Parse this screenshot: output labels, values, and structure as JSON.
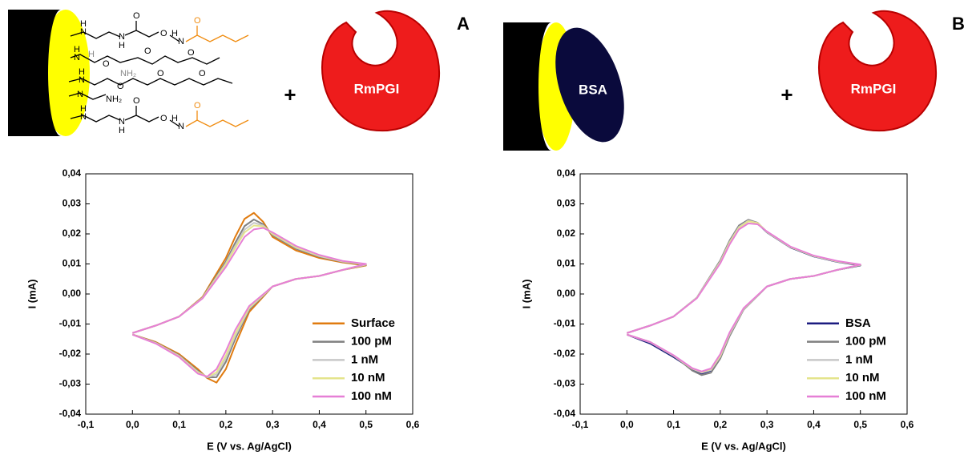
{
  "schematic": [
    {
      "panel_label": "A",
      "plus": "+",
      "protein": "RmPGI",
      "atoms": [
        "H",
        "N",
        "O",
        "N",
        "H",
        "O",
        "N",
        "H",
        "O",
        "H",
        "N",
        "H",
        "NH₂",
        "O",
        "O",
        "O",
        "H",
        "N",
        "O",
        "O",
        "O",
        "N",
        "NH₂",
        "H",
        "N",
        "O",
        "N",
        "H",
        "O",
        "N",
        "H",
        "O"
      ]
    },
    {
      "panel_label": "B",
      "blocker": "BSA",
      "plus": "+",
      "protein": "RmPGI"
    }
  ],
  "chart_data": [
    {
      "type": "line",
      "xlabel": "E (V vs. Ag/AgCl)",
      "ylabel": "I (mA)",
      "legend": "lower right",
      "xlim": [
        -0.1,
        0.6
      ],
      "ylim": [
        -0.04,
        0.04
      ],
      "xticks": [
        {
          "value": -0.1,
          "label": "-0,1"
        },
        {
          "value": 0,
          "label": "0,0"
        },
        {
          "value": 0.1,
          "label": "0,1"
        },
        {
          "value": 0.2,
          "label": "0,2"
        },
        {
          "value": 0.3,
          "label": "0,3"
        },
        {
          "value": 0.4,
          "label": "0,4"
        },
        {
          "value": 0.5,
          "label": "0,5"
        },
        {
          "value": 0.6,
          "label": "0,6"
        }
      ],
      "yticks": [
        {
          "value": -0.04,
          "label": "-0,04"
        },
        {
          "value": -0.03,
          "label": "-0,03"
        },
        {
          "value": -0.02,
          "label": "-0,02"
        },
        {
          "value": -0.01,
          "label": "-0,01"
        },
        {
          "value": 0,
          "label": "0,00"
        },
        {
          "value": 0.01,
          "label": "0,01"
        },
        {
          "value": 0.02,
          "label": "0,02"
        },
        {
          "value": 0.03,
          "label": "0,03"
        },
        {
          "value": 0.04,
          "label": "0,04"
        }
      ],
      "x": [
        0,
        0.05,
        0.1,
        0.15,
        0.2,
        0.22,
        0.24,
        0.26,
        0.28,
        0.3,
        0.35,
        0.4,
        0.45,
        0.5,
        0.45,
        0.4,
        0.35,
        0.3,
        0.25,
        0.22,
        0.2,
        0.18,
        0.16,
        0.14,
        0.1,
        0.05,
        0
      ],
      "series": [
        {
          "name": "Surface",
          "color": "#e07b10",
          "values": [
            -0.013,
            -0.0105,
            -0.0075,
            -0.001,
            0.012,
            0.019,
            0.025,
            0.027,
            0.024,
            0.019,
            0.0145,
            0.012,
            0.0105,
            0.0095,
            0.008,
            0.006,
            0.005,
            0.0025,
            -0.006,
            -0.017,
            -0.025,
            -0.0295,
            -0.028,
            -0.025,
            -0.02,
            -0.016,
            -0.0135
          ]
        },
        {
          "name": "100 pM",
          "color": "#808080",
          "values": [
            -0.013,
            -0.0105,
            -0.0075,
            -0.0012,
            0.0108,
            0.017,
            0.0226,
            0.0248,
            0.0232,
            0.0196,
            0.0151,
            0.0124,
            0.0107,
            0.0097,
            0.008,
            0.006,
            0.005,
            0.0025,
            -0.0052,
            -0.015,
            -0.0226,
            -0.0277,
            -0.0278,
            -0.0256,
            -0.0204,
            -0.0162,
            -0.0135
          ]
        },
        {
          "name": "1 nM",
          "color": "#c8c8c8",
          "values": [
            -0.013,
            -0.0105,
            -0.0075,
            -0.0013,
            0.0102,
            0.016,
            0.0214,
            0.0237,
            0.0228,
            0.0199,
            0.0154,
            0.0126,
            0.0108,
            0.0098,
            0.008,
            0.006,
            0.005,
            0.0025,
            -0.0048,
            -0.014,
            -0.0214,
            -0.0268,
            -0.0277,
            -0.0259,
            -0.0206,
            -0.0163,
            -0.0135
          ]
        },
        {
          "name": "10 nM",
          "color": "#e4e48c",
          "values": [
            -0.013,
            -0.0105,
            -0.0075,
            -0.0014,
            0.0098,
            0.0153,
            0.0205,
            0.0228,
            0.0225,
            0.0201,
            0.0156,
            0.0128,
            0.0109,
            0.0099,
            0.008,
            0.006,
            0.005,
            0.0025,
            -0.0045,
            -0.0133,
            -0.0205,
            -0.0261,
            -0.0276,
            -0.0261,
            -0.0208,
            -0.0164,
            -0.0135
          ]
        },
        {
          "name": "100 nM",
          "color": "#e67fd6",
          "values": [
            -0.013,
            -0.0105,
            -0.0075,
            -0.0015,
            0.009,
            0.014,
            0.019,
            0.0215,
            0.022,
            0.0205,
            0.016,
            0.013,
            0.011,
            0.01,
            0.008,
            0.006,
            0.005,
            0.0025,
            -0.004,
            -0.012,
            -0.019,
            -0.025,
            -0.0275,
            -0.0265,
            -0.021,
            -0.0165,
            -0.0135
          ]
        }
      ]
    },
    {
      "type": "line",
      "xlabel": "E (V vs. Ag/AgCl)",
      "ylabel": "I (mA)",
      "legend": "lower right",
      "xlim": [
        -0.1,
        0.6
      ],
      "ylim": [
        -0.04,
        0.04
      ],
      "xticks": [
        {
          "value": -0.1,
          "label": "-0,1"
        },
        {
          "value": 0,
          "label": "0,0"
        },
        {
          "value": 0.1,
          "label": "0,1"
        },
        {
          "value": 0.2,
          "label": "0,2"
        },
        {
          "value": 0.3,
          "label": "0,3"
        },
        {
          "value": 0.4,
          "label": "0,4"
        },
        {
          "value": 0.5,
          "label": "0,5"
        },
        {
          "value": 0.6,
          "label": "0,6"
        }
      ],
      "yticks": [
        {
          "value": -0.04,
          "label": "-0,04"
        },
        {
          "value": -0.03,
          "label": "-0,03"
        },
        {
          "value": -0.02,
          "label": "-0,02"
        },
        {
          "value": -0.01,
          "label": "-0,01"
        },
        {
          "value": 0,
          "label": "0,00"
        },
        {
          "value": 0.01,
          "label": "0,01"
        },
        {
          "value": 0.02,
          "label": "0,02"
        },
        {
          "value": 0.03,
          "label": "0,03"
        },
        {
          "value": 0.04,
          "label": "0,04"
        }
      ],
      "x": [
        0,
        0.05,
        0.1,
        0.15,
        0.2,
        0.22,
        0.24,
        0.26,
        0.28,
        0.3,
        0.35,
        0.4,
        0.45,
        0.5,
        0.45,
        0.4,
        0.35,
        0.3,
        0.25,
        0.22,
        0.2,
        0.18,
        0.16,
        0.14,
        0.1,
        0.05,
        0
      ],
      "series": [
        {
          "name": "BSA",
          "color": "#1c1c80",
          "values": [
            -0.013,
            -0.0105,
            -0.0075,
            -0.0012,
            0.011,
            0.0175,
            0.0225,
            0.0245,
            0.0235,
            0.0205,
            0.0155,
            0.0125,
            0.0107,
            0.0095,
            0.008,
            0.006,
            0.005,
            0.0025,
            -0.005,
            -0.0135,
            -0.021,
            -0.0255,
            -0.0265,
            -0.025,
            -0.021,
            -0.0165,
            -0.0135
          ]
        },
        {
          "name": "100 pM",
          "color": "#808080",
          "values": [
            -0.013,
            -0.0105,
            -0.0075,
            -0.0012,
            0.0112,
            0.0178,
            0.0228,
            0.0247,
            0.0237,
            0.0206,
            0.0156,
            0.0126,
            0.0108,
            0.0096,
            0.008,
            0.006,
            0.005,
            0.0025,
            -0.0052,
            -0.014,
            -0.0215,
            -0.0262,
            -0.027,
            -0.0255,
            -0.0205,
            -0.016,
            -0.0135
          ]
        },
        {
          "name": "1 nM",
          "color": "#c8c8c8",
          "values": [
            -0.013,
            -0.0105,
            -0.0075,
            -0.0012,
            0.0108,
            0.0173,
            0.0223,
            0.0244,
            0.0236,
            0.0206,
            0.0156,
            0.0126,
            0.0108,
            0.0097,
            0.008,
            0.006,
            0.005,
            0.0025,
            -0.005,
            -0.0134,
            -0.0208,
            -0.0253,
            -0.0262,
            -0.0249,
            -0.0206,
            -0.0161,
            -0.0135
          ]
        },
        {
          "name": "10 nM",
          "color": "#e4e48c",
          "values": [
            -0.013,
            -0.0105,
            -0.0075,
            -0.0013,
            0.0105,
            0.017,
            0.022,
            0.0242,
            0.0236,
            0.0207,
            0.0157,
            0.0127,
            0.0109,
            0.0097,
            0.008,
            0.006,
            0.005,
            0.0025,
            -0.0048,
            -0.013,
            -0.0205,
            -0.025,
            -0.026,
            -0.0248,
            -0.0205,
            -0.016,
            -0.0135
          ]
        },
        {
          "name": "100 nM",
          "color": "#e67fd6",
          "values": [
            -0.013,
            -0.0105,
            -0.0075,
            -0.0014,
            0.0102,
            0.0165,
            0.0215,
            0.0235,
            0.0232,
            0.0208,
            0.0158,
            0.0128,
            0.011,
            0.0098,
            0.008,
            0.006,
            0.005,
            0.0025,
            -0.0047,
            -0.0128,
            -0.02,
            -0.0248,
            -0.0258,
            -0.0247,
            -0.0204,
            -0.016,
            -0.0135
          ]
        }
      ]
    }
  ]
}
